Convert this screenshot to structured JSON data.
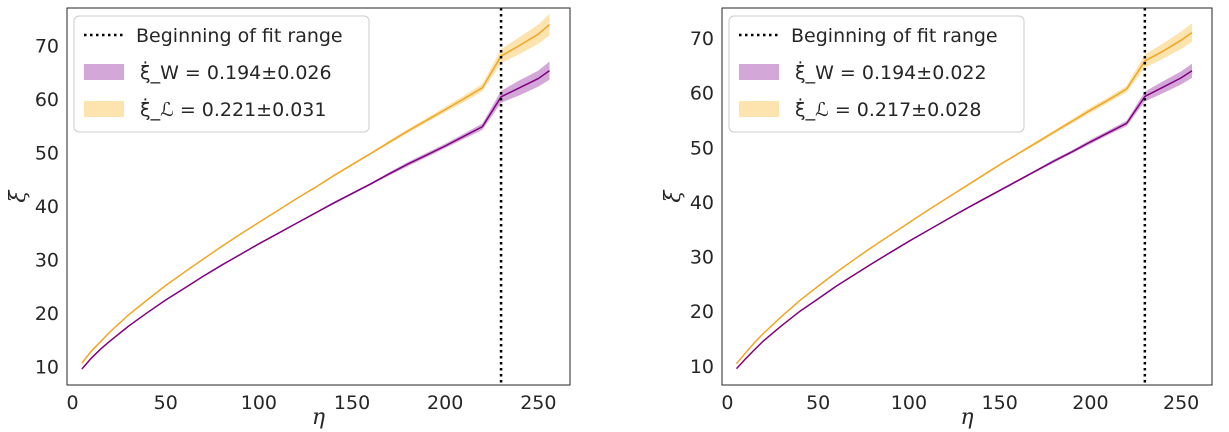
{
  "chart_data": [
    {
      "type": "line",
      "xlabel": "η",
      "ylabel": "ξ",
      "xlim": [
        -3,
        267
      ],
      "ylim": [
        6.5,
        77
      ],
      "x_ticks": [
        "0",
        "50",
        "100",
        "150",
        "200",
        "250"
      ],
      "y_ticks": [
        "10",
        "20",
        "30",
        "40",
        "50",
        "60",
        "70"
      ],
      "grid": false,
      "legend_position": "top-left",
      "vline": {
        "x": 230,
        "label": "Beginning of fit range",
        "color": "#000000"
      },
      "series": [
        {
          "name": "ξ̇_W = 0.194±0.026",
          "color": "#800080",
          "band_color": "#d3a8d9",
          "x": [
            5,
            10,
            15,
            20,
            30,
            40,
            50,
            60,
            70,
            80,
            90,
            100,
            110,
            120,
            130,
            140,
            150,
            160,
            170,
            180,
            190,
            200,
            210,
            220,
            230,
            240,
            250,
            256
          ],
          "y": [
            9.5,
            11.5,
            13.2,
            14.7,
            17.5,
            20.0,
            22.4,
            24.6,
            26.8,
            28.9,
            30.9,
            32.9,
            34.8,
            36.7,
            38.6,
            40.5,
            42.3,
            44.1,
            46.0,
            47.8,
            49.5,
            51.2,
            53.0,
            54.8,
            60.4,
            62.1,
            63.8,
            65.3
          ],
          "band_lower": [
            9.4,
            11.4,
            13.1,
            14.6,
            17.4,
            19.9,
            22.3,
            24.5,
            26.7,
            28.8,
            30.8,
            32.8,
            34.7,
            36.6,
            38.5,
            40.3,
            42.1,
            43.9,
            45.7,
            47.4,
            49.1,
            50.8,
            52.5,
            54.2,
            59.3,
            60.7,
            62.3,
            63.6
          ],
          "band_upper": [
            9.6,
            11.6,
            13.3,
            14.8,
            17.6,
            20.1,
            22.5,
            24.7,
            26.9,
            29.0,
            31.0,
            33.0,
            34.9,
            36.8,
            38.7,
            40.7,
            42.5,
            44.3,
            46.3,
            48.2,
            49.9,
            51.6,
            53.5,
            55.4,
            61.5,
            63.5,
            65.3,
            67.0
          ]
        },
        {
          "name": "ξ̇_ℒ = 0.221±0.031",
          "color": "#f0a524",
          "band_color": "#fde3ad",
          "x": [
            5,
            10,
            15,
            20,
            30,
            40,
            50,
            60,
            70,
            80,
            90,
            100,
            110,
            120,
            130,
            140,
            150,
            160,
            170,
            180,
            190,
            200,
            210,
            220,
            230,
            240,
            250,
            256
          ],
          "y": [
            10.6,
            12.8,
            14.6,
            16.4,
            19.6,
            22.4,
            25.1,
            27.6,
            30.0,
            32.4,
            34.7,
            36.9,
            39.1,
            41.3,
            43.4,
            45.6,
            47.7,
            49.8,
            51.9,
            54.0,
            56.0,
            58.0,
            60.0,
            62.1,
            68.0,
            70.0,
            72.1,
            73.9
          ],
          "band_lower": [
            10.5,
            12.7,
            14.5,
            16.3,
            19.5,
            22.3,
            25.0,
            27.5,
            29.9,
            32.3,
            34.6,
            36.8,
            39.0,
            41.2,
            43.3,
            45.4,
            47.5,
            49.6,
            51.6,
            53.6,
            55.6,
            57.5,
            59.4,
            61.4,
            66.7,
            68.4,
            70.3,
            71.9
          ],
          "band_upper": [
            10.7,
            12.9,
            14.7,
            16.5,
            19.7,
            22.5,
            25.2,
            27.7,
            30.1,
            32.5,
            34.8,
            37.0,
            39.2,
            41.4,
            43.5,
            45.8,
            47.9,
            50.0,
            52.2,
            54.4,
            56.4,
            58.5,
            60.6,
            62.8,
            69.3,
            71.6,
            73.9,
            75.9
          ]
        }
      ]
    },
    {
      "type": "line",
      "xlabel": "η",
      "ylabel": "ξ",
      "xlim": [
        -3,
        267
      ],
      "ylim": [
        6.5,
        75.5
      ],
      "x_ticks": [
        "0",
        "50",
        "100",
        "150",
        "200",
        "250"
      ],
      "y_ticks": [
        "10",
        "20",
        "30",
        "40",
        "50",
        "60",
        "70"
      ],
      "grid": false,
      "legend_position": "top-left",
      "vline": {
        "x": 230,
        "label": "Beginning of fit range",
        "color": "#000000"
      },
      "series": [
        {
          "name": "ξ̇_W = 0.194±0.022",
          "color": "#800080",
          "band_color": "#d3a8d9",
          "x": [
            5,
            10,
            15,
            20,
            30,
            40,
            50,
            60,
            70,
            80,
            90,
            100,
            110,
            120,
            130,
            140,
            150,
            160,
            170,
            180,
            190,
            200,
            210,
            220,
            230,
            240,
            250,
            256
          ],
          "y": [
            9.5,
            11.3,
            13.0,
            14.6,
            17.4,
            20.0,
            22.3,
            24.6,
            26.7,
            28.8,
            30.8,
            32.8,
            34.7,
            36.6,
            38.5,
            40.3,
            42.1,
            43.9,
            45.7,
            47.5,
            49.2,
            51.0,
            52.7,
            54.4,
            59.3,
            61.0,
            62.7,
            64.0
          ],
          "band_lower": [
            9.4,
            11.2,
            12.9,
            14.5,
            17.3,
            19.9,
            22.2,
            24.5,
            26.6,
            28.7,
            30.7,
            32.7,
            34.6,
            36.5,
            38.4,
            40.1,
            41.9,
            43.7,
            45.5,
            47.2,
            48.9,
            50.6,
            52.3,
            53.9,
            58.4,
            59.9,
            61.5,
            62.7
          ],
          "band_upper": [
            9.6,
            11.4,
            13.1,
            14.7,
            17.5,
            20.1,
            22.4,
            24.7,
            26.8,
            28.9,
            30.9,
            32.9,
            34.8,
            36.7,
            38.6,
            40.5,
            42.3,
            44.1,
            45.9,
            47.8,
            49.5,
            51.4,
            53.1,
            54.9,
            60.2,
            62.1,
            63.9,
            65.3
          ]
        },
        {
          "name": "ξ̇_ℒ = 0.217±0.028",
          "color": "#f0a524",
          "band_color": "#fde3ad",
          "x": [
            5,
            10,
            15,
            20,
            30,
            40,
            50,
            60,
            70,
            80,
            90,
            100,
            110,
            120,
            130,
            140,
            150,
            160,
            170,
            180,
            190,
            200,
            210,
            220,
            230,
            240,
            250,
            256
          ],
          "y": [
            10.4,
            12.4,
            14.3,
            16.0,
            19.1,
            22.0,
            24.6,
            27.1,
            29.5,
            31.8,
            34.0,
            36.2,
            38.4,
            40.5,
            42.6,
            44.7,
            46.8,
            48.8,
            50.8,
            52.8,
            54.8,
            56.8,
            58.7,
            60.7,
            65.8,
            67.6,
            69.6,
            71.0
          ],
          "band_lower": [
            10.3,
            12.3,
            14.2,
            15.9,
            19.0,
            21.9,
            24.5,
            27.0,
            29.4,
            31.7,
            33.9,
            36.1,
            38.3,
            40.4,
            42.4,
            44.5,
            46.6,
            48.6,
            50.5,
            52.5,
            54.4,
            56.3,
            58.2,
            60.1,
            64.6,
            66.2,
            68.0,
            69.3
          ],
          "band_upper": [
            10.5,
            12.5,
            14.4,
            16.1,
            19.2,
            22.1,
            24.7,
            27.2,
            29.6,
            31.9,
            34.1,
            36.3,
            38.5,
            40.6,
            42.8,
            44.9,
            47.0,
            49.0,
            51.1,
            53.1,
            55.2,
            57.3,
            59.2,
            61.3,
            67.0,
            69.0,
            71.2,
            72.7
          ]
        }
      ]
    }
  ]
}
